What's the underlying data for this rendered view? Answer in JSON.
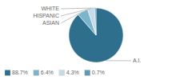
{
  "chart_data": {
    "type": "pie",
    "categories": [
      "A.I.",
      "ASIAN",
      "HISPANIC",
      "WHITE"
    ],
    "values": [
      88.7,
      6.4,
      4.3,
      0.7
    ],
    "value_labels": [
      "88.7%",
      "6.4%",
      "4.3%",
      "0.7%"
    ],
    "colors": [
      "#2e6f8e",
      "#7ab5cc",
      "#c5dce8",
      "#5a9ab5"
    ],
    "legend": "lower left"
  }
}
